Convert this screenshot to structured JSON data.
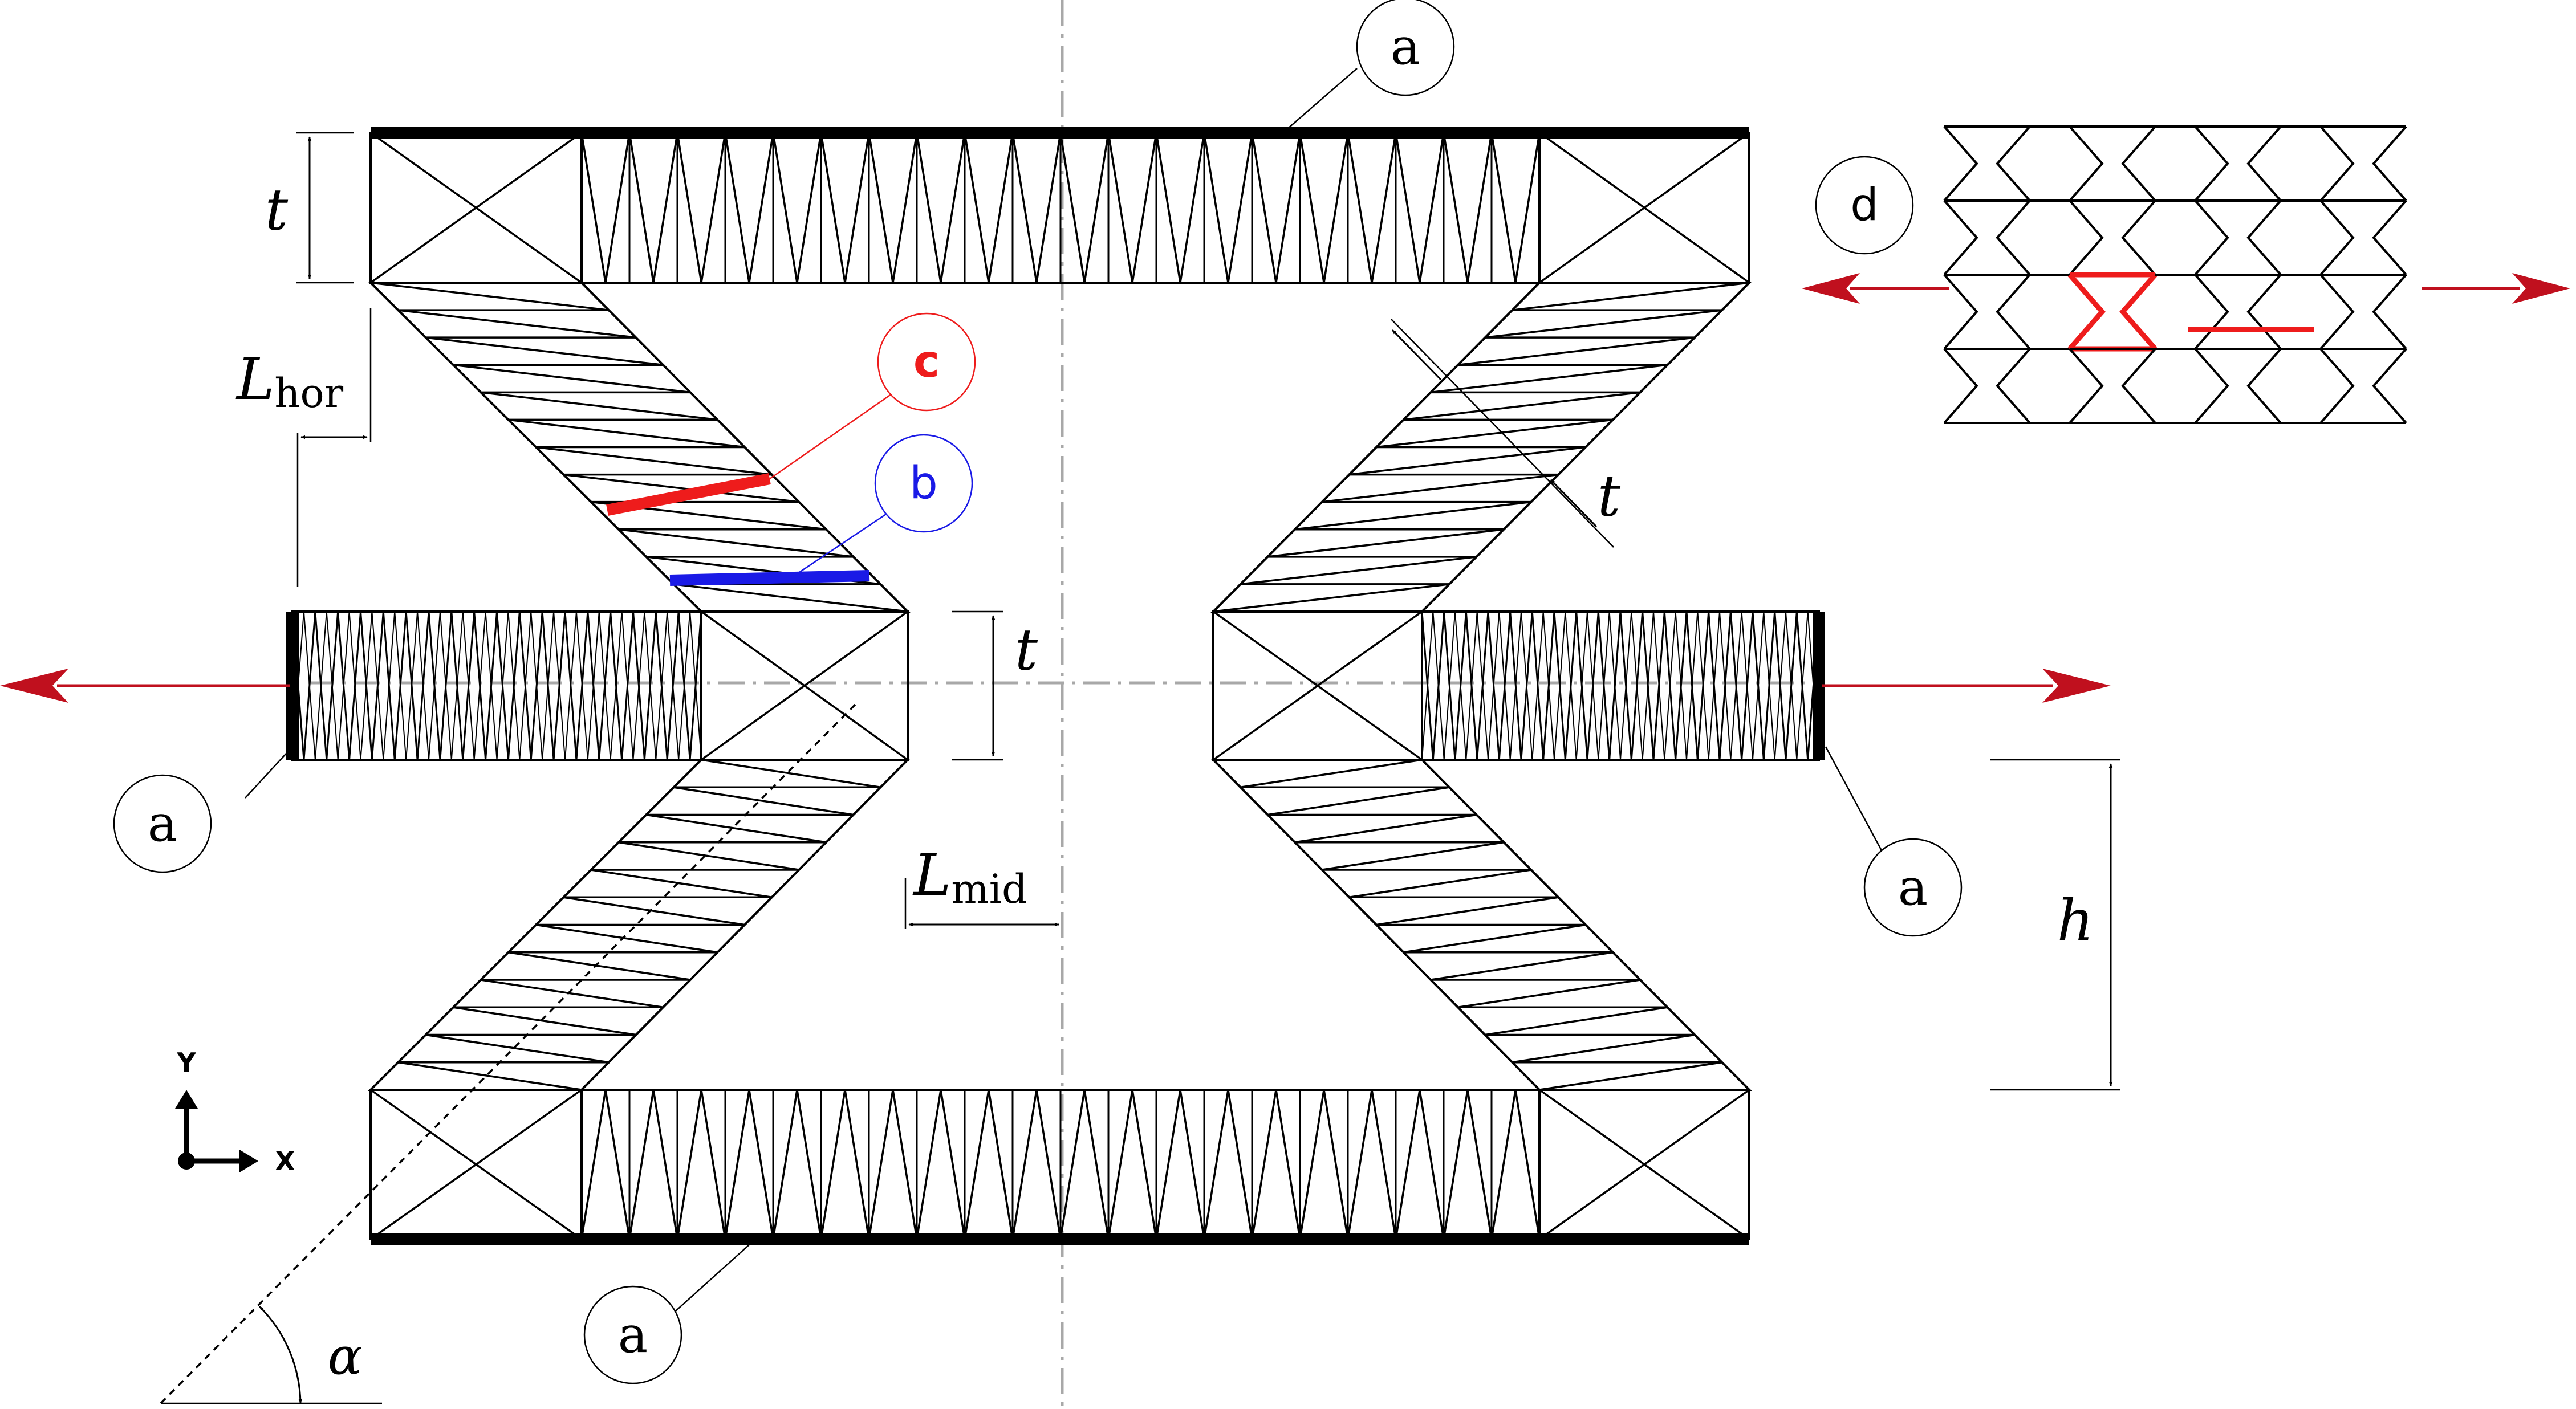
{
  "labels": {
    "a": "a",
    "b": "b",
    "c": "c",
    "d": "d"
  },
  "symbols": {
    "t": "t",
    "h": "h",
    "alpha": "α",
    "L": "L",
    "hor_sub": "hor",
    "mid_sub": "mid"
  },
  "axes": {
    "y": "Y",
    "x": "X"
  },
  "colors": {
    "red_arrow": "#c0101e",
    "label_c": "#ee1c1c",
    "label_b": "#1a1ae6",
    "frame": "#000000",
    "centreline": "#a8a8a8"
  }
}
